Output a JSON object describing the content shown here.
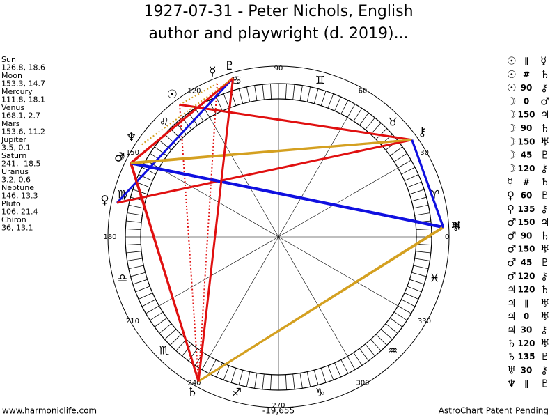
{
  "header": {
    "title_lines": [
      "1927-07-31 - Peter Nichols, English",
      "author and playwright (d. 2019)..."
    ]
  },
  "coord_separator": ", ",
  "planets": [
    {
      "name": "Sun",
      "glyph": "☉",
      "lon": 126.8,
      "dec": 18.6
    },
    {
      "name": "Moon",
      "glyph": "☽",
      "lon": 153.3,
      "dec": 14.7
    },
    {
      "name": "Mercury",
      "glyph": "☿",
      "lon": 111.8,
      "dec": 18.1
    },
    {
      "name": "Venus",
      "glyph": "♀",
      "lon": 168.1,
      "dec": 2.7
    },
    {
      "name": "Mars",
      "glyph": "♂",
      "lon": 153.6,
      "dec": 11.2
    },
    {
      "name": "Jupiter",
      "glyph": "♃",
      "lon": 3.5,
      "dec": 0.1
    },
    {
      "name": "Saturn",
      "glyph": "♄",
      "lon": 241.0,
      "dec": -18.5
    },
    {
      "name": "Uranus",
      "glyph": "♅",
      "lon": 3.2,
      "dec": 0.6
    },
    {
      "name": "Neptune",
      "glyph": "♆",
      "lon": 146.0,
      "dec": 13.3
    },
    {
      "name": "Pluto",
      "glyph": "♇",
      "lon": 106.0,
      "dec": 21.4
    },
    {
      "name": "Chiron",
      "glyph": "⚷",
      "lon": 36.0,
      "dec": 13.1
    }
  ],
  "signs": [
    "♈",
    "♉",
    "♊",
    "♋",
    "♌",
    "♍",
    "♎",
    "♏",
    "♐",
    "♑",
    "♒",
    "♓"
  ],
  "degree_labels": [
    0,
    30,
    60,
    90,
    120,
    150,
    180,
    210,
    240,
    270,
    300,
    330
  ],
  "aspect_styles": {
    "0": {
      "color": "none"
    },
    "30": {
      "color": "#1010e0"
    },
    "45": {
      "color": "#e01010"
    },
    "60": {
      "color": "#1010e0"
    },
    "90": {
      "color": "#e01010"
    },
    "120": {
      "color": "#d4a020"
    },
    "135": {
      "color": "#e01010"
    },
    "150": {
      "color": "#1010e0"
    },
    "∥": {
      "color": "#d4a020",
      "dotted": true
    },
    "#": {
      "color": "#e01010",
      "dotted": true
    }
  },
  "aspects": [
    [
      "☉",
      "∥",
      "☿"
    ],
    [
      "☉",
      "#",
      "♄"
    ],
    [
      "☉",
      "90",
      "⚷"
    ],
    [
      "☽",
      "0",
      "♂"
    ],
    [
      "☽",
      "150",
      "♃"
    ],
    [
      "☽",
      "90",
      "♄"
    ],
    [
      "☽",
      "150",
      "♅"
    ],
    [
      "☽",
      "45",
      "♇"
    ],
    [
      "☽",
      "120",
      "⚷"
    ],
    [
      "☿",
      "#",
      "♄"
    ],
    [
      "♀",
      "60",
      "♇"
    ],
    [
      "♀",
      "135",
      "⚷"
    ],
    [
      "♂",
      "150",
      "♃"
    ],
    [
      "♂",
      "90",
      "♄"
    ],
    [
      "♂",
      "150",
      "♅"
    ],
    [
      "♂",
      "45",
      "♇"
    ],
    [
      "♂",
      "120",
      "⚷"
    ],
    [
      "♃",
      "120",
      "♄"
    ],
    [
      "♃",
      "∥",
      "♅"
    ],
    [
      "♃",
      "0",
      "♅"
    ],
    [
      "♃",
      "30",
      "⚷"
    ],
    [
      "♄",
      "120",
      "♅"
    ],
    [
      "♄",
      "135",
      "♇"
    ],
    [
      "♅",
      "30",
      "⚷"
    ],
    [
      "♆",
      "∥",
      "♇"
    ]
  ],
  "footer": {
    "left": "www.harmoniclife.com",
    "center": "-19,655",
    "right": "AstroChart Patent Pending"
  }
}
